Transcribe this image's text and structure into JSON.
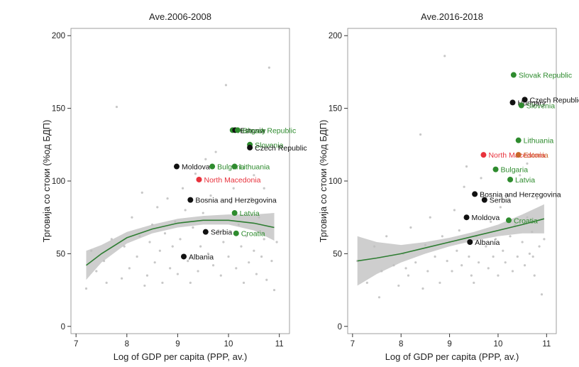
{
  "colors": {
    "black_group": "#111111",
    "green_group": "#2e8b2e",
    "red_group": "#e8323c",
    "orange_group": "#c8682a",
    "background_points": "#c8c8c8",
    "fit_line": "#2e7d32",
    "ci_band": "#bdbdbd"
  },
  "chart_data": [
    {
      "type": "scatter",
      "title": "Ave.2006-2008",
      "xlabel": "Log of GDP per capita (PPP, av.)",
      "ylabel": "Трговија со стоки (%од БДП)",
      "xlim": [
        6.9,
        11.2
      ],
      "ylim": [
        -5,
        205
      ],
      "xticks": [
        7,
        8,
        9,
        10,
        11
      ],
      "yticks": [
        0,
        50,
        100,
        150,
        200
      ],
      "legend": "none",
      "highlighted": [
        {
          "label": "Hungary",
          "x": 10.08,
          "y": 135,
          "group": "green"
        },
        {
          "label": "Estonia",
          "x": 10.13,
          "y": 135,
          "group": "black"
        },
        {
          "label": "Slovak Republic",
          "x": 10.18,
          "y": 135,
          "group": "green"
        },
        {
          "label": "Slovenia",
          "x": 10.42,
          "y": 125,
          "group": "green"
        },
        {
          "label": "Czech Republic",
          "x": 10.42,
          "y": 123,
          "group": "black"
        },
        {
          "label": "Moldova",
          "x": 8.98,
          "y": 110,
          "group": "black"
        },
        {
          "label": "Bulgaria",
          "x": 9.68,
          "y": 110,
          "group": "green"
        },
        {
          "label": "Lithuania",
          "x": 10.12,
          "y": 110,
          "group": "green"
        },
        {
          "label": "North Macedonia",
          "x": 9.42,
          "y": 101,
          "group": "red"
        },
        {
          "label": "Bosnia and Herzegovina",
          "x": 9.25,
          "y": 87,
          "group": "black"
        },
        {
          "label": "Latvia",
          "x": 10.12,
          "y": 78,
          "group": "green"
        },
        {
          "label": "Serbia",
          "x": 9.55,
          "y": 65,
          "group": "black"
        },
        {
          "label": "Croatia",
          "x": 10.15,
          "y": 64,
          "group": "green"
        },
        {
          "label": "Albania",
          "x": 9.12,
          "y": 48,
          "group": "black"
        }
      ],
      "fit": {
        "x": [
          7.2,
          7.5,
          8.0,
          8.5,
          9.0,
          9.5,
          10.0,
          10.5,
          10.9
        ],
        "y": [
          42,
          50,
          61,
          67,
          71,
          73,
          73,
          71,
          68
        ],
        "lower": [
          32,
          44,
          57,
          64,
          68,
          70,
          70,
          66,
          59
        ],
        "upper": [
          52,
          56,
          65,
          70,
          74,
          76,
          77,
          77,
          78
        ]
      },
      "background_points": [
        [
          7.2,
          26
        ],
        [
          7.3,
          52
        ],
        [
          7.4,
          38
        ],
        [
          7.55,
          45
        ],
        [
          7.6,
          30
        ],
        [
          7.7,
          60
        ],
        [
          7.8,
          151
        ],
        [
          7.9,
          33
        ],
        [
          7.95,
          55
        ],
        [
          8.05,
          40
        ],
        [
          8.1,
          75
        ],
        [
          8.2,
          48
        ],
        [
          8.25,
          62
        ],
        [
          8.3,
          92
        ],
        [
          8.4,
          35
        ],
        [
          8.45,
          58
        ],
        [
          8.5,
          70
        ],
        [
          8.55,
          44
        ],
        [
          8.6,
          82
        ],
        [
          8.65,
          52
        ],
        [
          8.7,
          30
        ],
        [
          8.75,
          64
        ],
        [
          8.8,
          88
        ],
        [
          8.85,
          40
        ],
        [
          8.9,
          55
        ],
        [
          8.95,
          72
        ],
        [
          9.0,
          36
        ],
        [
          9.05,
          60
        ],
        [
          9.1,
          95
        ],
        [
          9.15,
          80
        ],
        [
          9.2,
          45
        ],
        [
          9.3,
          68
        ],
        [
          9.35,
          105
        ],
        [
          9.4,
          38
        ],
        [
          9.45,
          55
        ],
        [
          9.5,
          78
        ],
        [
          9.6,
          50
        ],
        [
          9.65,
          90
        ],
        [
          9.7,
          42
        ],
        [
          9.75,
          120
        ],
        [
          9.8,
          66
        ],
        [
          9.85,
          35
        ],
        [
          9.9,
          58
        ],
        [
          9.95,
          166
        ],
        [
          10.0,
          48
        ],
        [
          10.05,
          85
        ],
        [
          10.1,
          95
        ],
        [
          10.15,
          40
        ],
        [
          10.2,
          70
        ],
        [
          10.25,
          55
        ],
        [
          10.3,
          30
        ],
        [
          10.35,
          62
        ],
        [
          10.4,
          44
        ],
        [
          10.45,
          88
        ],
        [
          10.5,
          52
        ],
        [
          10.55,
          36
        ],
        [
          10.6,
          75
        ],
        [
          10.65,
          48
        ],
        [
          10.7,
          60
        ],
        [
          10.75,
          32
        ],
        [
          10.8,
          178
        ],
        [
          10.85,
          45
        ],
        [
          10.9,
          25
        ],
        [
          10.95,
          58
        ],
        [
          8.35,
          28
        ],
        [
          9.25,
          30
        ],
        [
          9.55,
          115
        ],
        [
          10.5,
          104
        ],
        [
          10.7,
          95
        ]
      ]
    },
    {
      "type": "scatter",
      "title": "Ave.2016-2018",
      "xlabel": "Log of GDP per capita (PPP, av.)",
      "ylabel": "Трговија со стоки (%од БДП)",
      "xlim": [
        6.9,
        11.2
      ],
      "ylim": [
        -5,
        205
      ],
      "xticks": [
        7,
        8,
        9,
        10,
        11
      ],
      "yticks": [
        0,
        50,
        100,
        150,
        200
      ],
      "legend": "none",
      "highlighted": [
        {
          "label": "Slovak Republic",
          "x": 10.32,
          "y": 173,
          "group": "green"
        },
        {
          "label": "Czech Republic",
          "x": 10.55,
          "y": 156,
          "group": "black"
        },
        {
          "label": "Hungary",
          "x": 10.3,
          "y": 154,
          "group": "black"
        },
        {
          "label": "Slovenia",
          "x": 10.48,
          "y": 152,
          "group": "green"
        },
        {
          "label": "Lithuania",
          "x": 10.42,
          "y": 128,
          "group": "green"
        },
        {
          "label": "North Macedonia",
          "x": 9.7,
          "y": 118,
          "group": "red"
        },
        {
          "label": "Estonia",
          "x": 10.42,
          "y": 118,
          "group": "orange"
        },
        {
          "label": "Bulgaria",
          "x": 9.95,
          "y": 108,
          "group": "green"
        },
        {
          "label": "Latvia",
          "x": 10.25,
          "y": 101,
          "group": "green"
        },
        {
          "label": "Bosnia and Herzegovina",
          "x": 9.52,
          "y": 91,
          "group": "black"
        },
        {
          "label": "Serbia",
          "x": 9.72,
          "y": 87,
          "group": "black"
        },
        {
          "label": "Moldova",
          "x": 9.35,
          "y": 75,
          "group": "black"
        },
        {
          "label": "Croatia",
          "x": 10.22,
          "y": 73,
          "group": "green"
        },
        {
          "label": "Albania",
          "x": 9.42,
          "y": 58,
          "group": "black"
        }
      ],
      "fit": {
        "x": [
          7.1,
          7.5,
          8.0,
          8.5,
          9.0,
          9.5,
          10.0,
          10.5,
          10.95
        ],
        "y": [
          45,
          47,
          50,
          54,
          58,
          62,
          66,
          70,
          74
        ],
        "lower": [
          28,
          36,
          44,
          50,
          55,
          59,
          62,
          64,
          64
        ],
        "upper": [
          62,
          58,
          56,
          58,
          61,
          65,
          70,
          77,
          84
        ]
      },
      "background_points": [
        [
          7.1,
          45
        ],
        [
          7.3,
          30
        ],
        [
          7.45,
          55
        ],
        [
          7.6,
          38
        ],
        [
          7.7,
          62
        ],
        [
          7.85,
          42
        ],
        [
          7.95,
          28
        ],
        [
          8.05,
          50
        ],
        [
          8.15,
          35
        ],
        [
          8.2,
          68
        ],
        [
          8.3,
          44
        ],
        [
          8.4,
          132
        ],
        [
          8.5,
          56
        ],
        [
          8.55,
          38
        ],
        [
          8.6,
          75
        ],
        [
          8.7,
          48
        ],
        [
          8.8,
          30
        ],
        [
          8.85,
          62
        ],
        [
          8.9,
          186
        ],
        [
          8.95,
          45
        ],
        [
          9.0,
          58
        ],
        [
          9.05,
          38
        ],
        [
          9.1,
          80
        ],
        [
          9.15,
          52
        ],
        [
          9.2,
          66
        ],
        [
          9.25,
          42
        ],
        [
          9.3,
          96
        ],
        [
          9.4,
          48
        ],
        [
          9.45,
          35
        ],
        [
          9.55,
          62
        ],
        [
          9.6,
          44
        ],
        [
          9.65,
          102
        ],
        [
          9.75,
          55
        ],
        [
          9.8,
          40
        ],
        [
          9.85,
          72
        ],
        [
          9.9,
          48
        ],
        [
          9.95,
          60
        ],
        [
          10.0,
          35
        ],
        [
          10.05,
          82
        ],
        [
          10.1,
          52
        ],
        [
          10.15,
          44
        ],
        [
          10.2,
          90
        ],
        [
          10.25,
          62
        ],
        [
          10.3,
          38
        ],
        [
          10.35,
          70
        ],
        [
          10.4,
          48
        ],
        [
          10.45,
          104
        ],
        [
          10.5,
          58
        ],
        [
          10.55,
          42
        ],
        [
          10.6,
          75
        ],
        [
          10.65,
          50
        ],
        [
          10.7,
          65
        ],
        [
          10.75,
          35
        ],
        [
          10.8,
          88
        ],
        [
          10.85,
          55
        ],
        [
          10.9,
          22
        ],
        [
          10.95,
          60
        ],
        [
          8.45,
          26
        ],
        [
          9.35,
          110
        ],
        [
          10.6,
          112
        ],
        [
          9.5,
          30
        ],
        [
          8.1,
          40
        ],
        [
          7.55,
          20
        ],
        [
          10.72,
          48
        ]
      ]
    }
  ]
}
